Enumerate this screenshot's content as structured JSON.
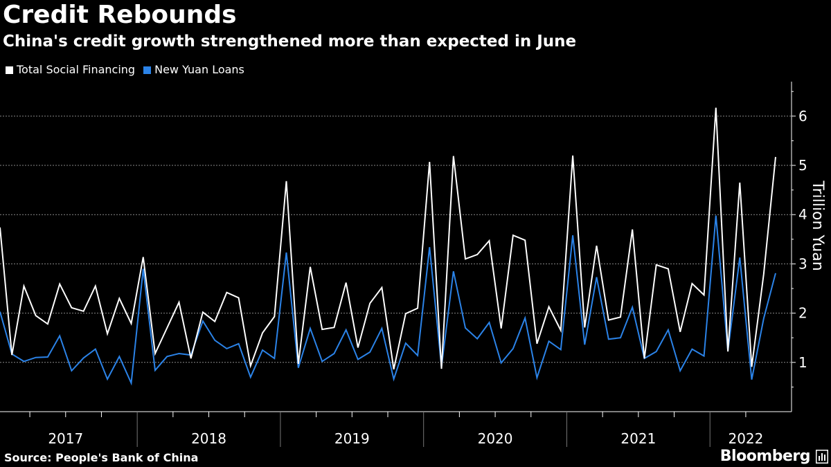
{
  "title": "Credit Rebounds",
  "subtitle": "China's credit growth strengthened more than expected in June",
  "legend": [
    {
      "label": "Total Social Financing",
      "color": "#ffffff"
    },
    {
      "label": "New Yuan Loans",
      "color": "#2b83e8"
    }
  ],
  "source": "Source: People's Bank of China",
  "brand": "Bloomberg",
  "brand_icon": "bloomberg-terminal-icon",
  "chart_data": {
    "type": "line",
    "title": "Credit Rebounds",
    "ylabel": "Trillion Yuan",
    "xlabel": "",
    "ylim": [
      0,
      6.7
    ],
    "yticks": [
      1,
      2,
      3,
      4,
      5,
      6
    ],
    "grid": true,
    "legend_position": "top-left",
    "x_start": "2017-01",
    "x_end": "2022-06",
    "year_labels": [
      "2017",
      "2018",
      "2019",
      "2020",
      "2021",
      "2022"
    ],
    "series": [
      {
        "name": "Total Social Financing",
        "color": "#ffffff",
        "values": [
          3.74,
          1.15,
          2.55,
          1.95,
          1.78,
          2.59,
          2.11,
          2.04,
          2.55,
          1.58,
          2.3,
          1.79,
          3.14,
          1.18,
          1.7,
          2.22,
          1.08,
          2.02,
          1.83,
          2.42,
          2.31,
          0.93,
          1.6,
          1.93,
          4.68,
          0.97,
          2.94,
          1.67,
          1.71,
          2.62,
          1.3,
          2.2,
          2.52,
          0.86,
          1.99,
          2.1,
          5.07,
          0.87,
          5.19,
          3.1,
          3.19,
          3.47,
          1.69,
          3.58,
          3.48,
          1.38,
          2.13,
          1.65,
          5.2,
          1.71,
          3.37,
          1.86,
          1.92,
          3.7,
          1.08,
          2.98,
          2.9,
          1.62,
          2.6,
          2.37,
          6.17,
          1.22,
          4.65,
          0.91,
          2.79,
          5.17
        ]
      },
      {
        "name": "New Yuan Loans",
        "color": "#2b83e8",
        "values": [
          2.03,
          1.17,
          1.02,
          1.1,
          1.11,
          1.54,
          0.83,
          1.09,
          1.27,
          0.66,
          1.12,
          0.58,
          2.9,
          0.84,
          1.12,
          1.18,
          1.15,
          1.84,
          1.45,
          1.28,
          1.38,
          0.7,
          1.25,
          1.08,
          3.23,
          0.89,
          1.69,
          1.02,
          1.18,
          1.66,
          1.06,
          1.21,
          1.69,
          0.66,
          1.39,
          1.14,
          3.34,
          0.91,
          2.85,
          1.7,
          1.48,
          1.81,
          0.99,
          1.28,
          1.9,
          0.69,
          1.43,
          1.26,
          3.58,
          1.36,
          2.73,
          1.47,
          1.5,
          2.12,
          1.08,
          1.22,
          1.66,
          0.83,
          1.27,
          1.13,
          3.98,
          1.23,
          3.13,
          0.65,
          1.89,
          2.81
        ]
      }
    ]
  }
}
